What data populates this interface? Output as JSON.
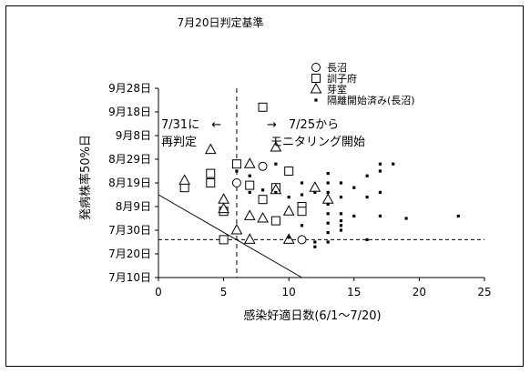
{
  "chart_data": {
    "type": "scatter",
    "title": "7月20日判定基準",
    "xlabel": "感染好適日数(6/1～7/20)",
    "ylabel": "発病株率50%日",
    "xlim": [
      0,
      25
    ],
    "x_ticks": [
      0,
      5,
      10,
      15,
      20,
      25
    ],
    "ylim": [
      "7月10日",
      "9月28日"
    ],
    "y_ticks": [
      "7月10日",
      "7月20日",
      "7月30日",
      "8月9日",
      "8月19日",
      "8月29日",
      "9月8日",
      "9月18日",
      "9月28日"
    ],
    "grid": false,
    "legend_position": "top-right",
    "series": [
      {
        "name": "長沼",
        "marker": "circle",
        "points": [
          {
            "x": 6,
            "y": "8月19日"
          },
          {
            "x": 8,
            "y": "8月26日"
          },
          {
            "x": 11,
            "y": "7月26日"
          }
        ]
      },
      {
        "name": "訓子府",
        "marker": "square",
        "points": [
          {
            "x": 2,
            "y": "8月17日"
          },
          {
            "x": 4,
            "y": "8月23日"
          },
          {
            "x": 4,
            "y": "8月19日"
          },
          {
            "x": 5,
            "y": "8月7日"
          },
          {
            "x": 5,
            "y": "7月26日"
          },
          {
            "x": 6,
            "y": "8月27日"
          },
          {
            "x": 7,
            "y": "8月18日"
          },
          {
            "x": 8,
            "y": "9月20日"
          },
          {
            "x": 8,
            "y": "8月12日"
          },
          {
            "x": 9,
            "y": "8月17日"
          },
          {
            "x": 9,
            "y": "8月3日"
          },
          {
            "x": 10,
            "y": "8月24日"
          },
          {
            "x": 11,
            "y": "8月9日"
          },
          {
            "x": 11,
            "y": "8月7日"
          }
        ]
      },
      {
        "name": "芽室",
        "marker": "triangle",
        "points": [
          {
            "x": 2,
            "y": "8月20日"
          },
          {
            "x": 4,
            "y": "9月2日"
          },
          {
            "x": 5,
            "y": "8月12日"
          },
          {
            "x": 5,
            "y": "8月8日"
          },
          {
            "x": 6,
            "y": "7月30日"
          },
          {
            "x": 7,
            "y": "8月27日"
          },
          {
            "x": 7,
            "y": "8月5日"
          },
          {
            "x": 7,
            "y": "7月26日"
          },
          {
            "x": 8,
            "y": "8月4日"
          },
          {
            "x": 9,
            "y": "9月3日"
          },
          {
            "x": 9,
            "y": "8月16日"
          },
          {
            "x": 10,
            "y": "8月7日"
          },
          {
            "x": 10,
            "y": "7月26日"
          },
          {
            "x": 12,
            "y": "8月17日"
          },
          {
            "x": 13,
            "y": "8月12日"
          }
        ]
      },
      {
        "name": "隔離開始済み(長沼)",
        "marker": "dot",
        "points": [
          {
            "x": 6,
            "y": "8月24日"
          },
          {
            "x": 7,
            "y": "8月22日"
          },
          {
            "x": 7,
            "y": "8月15日"
          },
          {
            "x": 8,
            "y": "8月16日"
          },
          {
            "x": 9,
            "y": "8月27日"
          },
          {
            "x": 9,
            "y": "8月15日"
          },
          {
            "x": 10,
            "y": "8月13日"
          },
          {
            "x": 10,
            "y": "7月27日"
          },
          {
            "x": 11,
            "y": "8月19日"
          },
          {
            "x": 11,
            "y": "8月14日"
          },
          {
            "x": 11,
            "y": "8月1日"
          },
          {
            "x": 12,
            "y": "8月15日"
          },
          {
            "x": 12,
            "y": "7月25日"
          },
          {
            "x": 12,
            "y": "7月23日"
          },
          {
            "x": 13,
            "y": "8月23日"
          },
          {
            "x": 13,
            "y": "8月19日"
          },
          {
            "x": 13,
            "y": "8月15日"
          },
          {
            "x": 13,
            "y": "8月10日"
          },
          {
            "x": 13,
            "y": "8月6日"
          },
          {
            "x": 13,
            "y": "8月2日"
          },
          {
            "x": 13,
            "y": "7月29日"
          },
          {
            "x": 13,
            "y": "7月25日"
          },
          {
            "x": 14,
            "y": "8月19日"
          },
          {
            "x": 14,
            "y": "8月13日"
          },
          {
            "x": 14,
            "y": "8月6日"
          },
          {
            "x": 14,
            "y": "8月3日"
          },
          {
            "x": 14,
            "y": "8月1日"
          },
          {
            "x": 14,
            "y": "7月30日"
          },
          {
            "x": 15,
            "y": "8月17日"
          },
          {
            "x": 15,
            "y": "8月5日"
          },
          {
            "x": 16,
            "y": "8月22日"
          },
          {
            "x": 16,
            "y": "8月13日"
          },
          {
            "x": 16,
            "y": "7月26日"
          },
          {
            "x": 17,
            "y": "8月27日"
          },
          {
            "x": 17,
            "y": "8月24日"
          },
          {
            "x": 17,
            "y": "8月15日"
          },
          {
            "x": 17,
            "y": "8月5日"
          },
          {
            "x": 18,
            "y": "8月27日"
          },
          {
            "x": 19,
            "y": "8月4日"
          },
          {
            "x": 23,
            "y": "8月5日"
          }
        ]
      }
    ],
    "reference_lines": [
      {
        "type": "vertical",
        "x": 6,
        "style": "dashed"
      },
      {
        "type": "horizontal",
        "y": "7月26日",
        "style": "dashed"
      },
      {
        "type": "diagonal",
        "from": {
          "x": 0,
          "y": "8月14日"
        },
        "to": {
          "x": 11,
          "y": "7月10日"
        },
        "style": "solid"
      }
    ],
    "annotations": {
      "left_line1": "7/31に　←",
      "left_line2": "再判定",
      "right_line1": "→　7/25から",
      "right_line2": "モニタリング開始"
    }
  }
}
